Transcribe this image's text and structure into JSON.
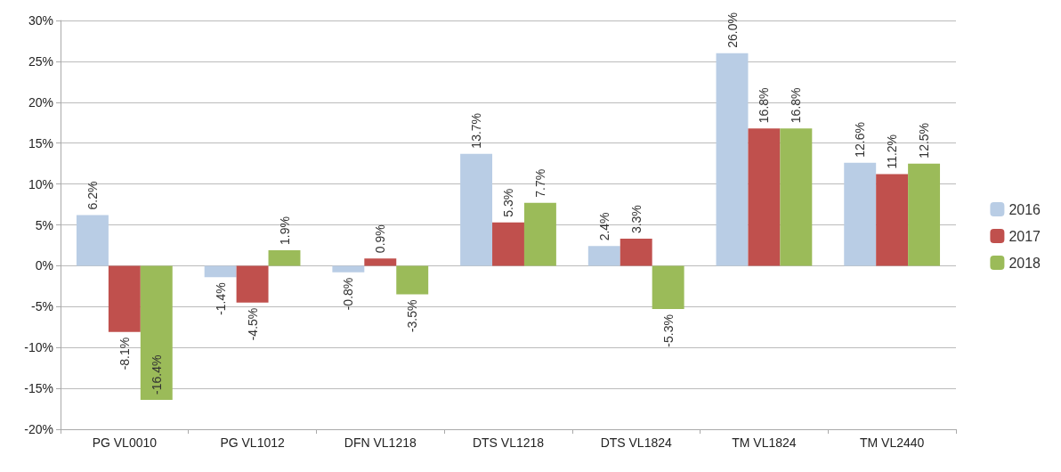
{
  "chart_data": {
    "type": "bar",
    "categories": [
      "PG VL0010",
      "PG VL1012",
      "DFN VL1218",
      "DTS VL1218",
      "DTS VL1824",
      "TM VL1824",
      "TM VL2440"
    ],
    "series": [
      {
        "name": "2016",
        "color": "#b9cde5",
        "values": [
          6.2,
          -1.4,
          -0.8,
          13.7,
          2.4,
          26.0,
          12.6
        ],
        "value_labels": [
          "6.2%",
          "-1.4%",
          "-0.8%",
          "13.7%",
          "2.4%",
          "26.0%",
          "12.6%"
        ]
      },
      {
        "name": "2017",
        "color": "#c0504d",
        "values": [
          -8.1,
          -4.5,
          0.9,
          5.3,
          3.3,
          16.8,
          11.2
        ],
        "value_labels": [
          "-8.1%",
          "-4.5%",
          "0.9%",
          "5.3%",
          "3.3%",
          "16.8%",
          "11.2%"
        ]
      },
      {
        "name": "2018",
        "color": "#9bbb59",
        "values": [
          -16.4,
          1.9,
          -3.5,
          7.7,
          -5.3,
          16.8,
          12.5
        ],
        "value_labels": [
          "-16.4%",
          "1.9%",
          "-3.5%",
          "7.7%",
          "-5.3%",
          "16.8%",
          "12.5%"
        ]
      }
    ],
    "ylim": [
      -20,
      30
    ],
    "yticks": [
      {
        "value": -20,
        "label": "-20%"
      },
      {
        "value": -15,
        "label": "-15%"
      },
      {
        "value": -10,
        "label": "-10%"
      },
      {
        "value": -5,
        "label": "-5%"
      },
      {
        "value": 0,
        "label": "0%"
      },
      {
        "value": 5,
        "label": "5%"
      },
      {
        "value": 10,
        "label": "10%"
      },
      {
        "value": 15,
        "label": "15%"
      },
      {
        "value": 20,
        "label": "20%"
      },
      {
        "value": 25,
        "label": "25%"
      },
      {
        "value": 30,
        "label": "30%"
      }
    ],
    "grid": "y",
    "legend": "right"
  }
}
